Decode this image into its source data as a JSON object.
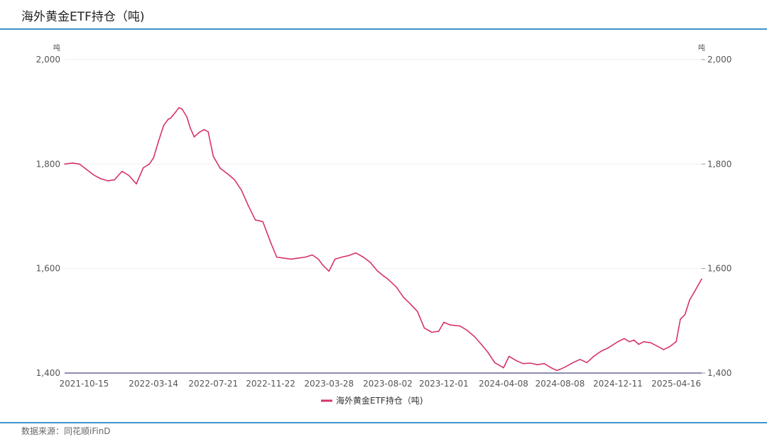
{
  "header": {
    "title": "海外黄金ETF持仓（吨)"
  },
  "footer": {
    "source": "数据来源：同花顺iFinD"
  },
  "colors": {
    "series": "#d6336c",
    "rule": "#3f93c9",
    "axis": "#666699",
    "grid": "#eeeeee"
  },
  "chart_data": {
    "type": "line",
    "title": "海外黄金ETF持仓（吨)",
    "y_unit_left": "吨",
    "y_unit_right": "吨",
    "ylim": [
      1400,
      2000
    ],
    "y_ticks": [
      "2,000",
      "1,800",
      "1,600",
      "1,400"
    ],
    "y_tick_values": [
      2000,
      1800,
      1600,
      1400
    ],
    "x_tick_labels": [
      "2021-10-15",
      "2022-03-14",
      "2022-07-21",
      "2022-11-22",
      "2023-03-28",
      "2023-08-02",
      "2023-12-01",
      "2024-04-08",
      "2024-08-08",
      "2024-12-11",
      "2025-04-16"
    ],
    "grid": true,
    "legend_position": "bottom-center",
    "series": [
      {
        "name": "海外黄金ETF持仓（吨)",
        "x": [
          "2021-09-03",
          "2021-09-20",
          "2021-10-05",
          "2021-10-20",
          "2021-11-05",
          "2021-11-20",
          "2021-12-05",
          "2021-12-20",
          "2022-01-05",
          "2022-01-20",
          "2022-02-05",
          "2022-02-20",
          "2022-03-05",
          "2022-03-14",
          "2022-03-25",
          "2022-04-05",
          "2022-04-15",
          "2022-04-20",
          "2022-05-01",
          "2022-05-08",
          "2022-05-15",
          "2022-05-25",
          "2022-06-01",
          "2022-06-10",
          "2022-06-20",
          "2022-07-01",
          "2022-07-10",
          "2022-07-21",
          "2022-08-05",
          "2022-08-20",
          "2022-09-05",
          "2022-09-20",
          "2022-10-05",
          "2022-10-20",
          "2022-11-05",
          "2022-11-22",
          "2022-12-05",
          "2022-12-20",
          "2023-01-05",
          "2023-01-20",
          "2023-02-05",
          "2023-02-20",
          "2023-03-05",
          "2023-03-15",
          "2023-03-28",
          "2023-04-10",
          "2023-04-25",
          "2023-05-10",
          "2023-05-25",
          "2023-06-10",
          "2023-06-25",
          "2023-07-10",
          "2023-07-25",
          "2023-08-02",
          "2023-08-20",
          "2023-09-05",
          "2023-09-20",
          "2023-10-05",
          "2023-10-20",
          "2023-11-05",
          "2023-11-20",
          "2023-12-01",
          "2023-12-15",
          "2024-01-05",
          "2024-01-20",
          "2024-02-05",
          "2024-02-20",
          "2024-03-05",
          "2024-03-20",
          "2024-04-08",
          "2024-04-20",
          "2024-05-05",
          "2024-05-20",
          "2024-06-05",
          "2024-06-20",
          "2024-07-05",
          "2024-07-20",
          "2024-08-01",
          "2024-08-08",
          "2024-08-20",
          "2024-09-05",
          "2024-09-20",
          "2024-10-05",
          "2024-10-20",
          "2024-11-05",
          "2024-11-20",
          "2024-12-11",
          "2024-12-25",
          "2025-01-05",
          "2025-01-15",
          "2025-01-25",
          "2025-02-05",
          "2025-02-20",
          "2025-03-05",
          "2025-03-20",
          "2025-04-01",
          "2025-04-16",
          "2025-04-25",
          "2025-05-05",
          "2025-05-15",
          "2025-05-25",
          "2025-06-10"
        ],
        "values": [
          1800,
          1802,
          1800,
          1790,
          1779,
          1772,
          1768,
          1770,
          1786,
          1778,
          1762,
          1793,
          1800,
          1812,
          1844,
          1874,
          1886,
          1888,
          1900,
          1908,
          1905,
          1890,
          1870,
          1852,
          1860,
          1866,
          1862,
          1815,
          1792,
          1782,
          1770,
          1750,
          1720,
          1693,
          1690,
          1650,
          1622,
          1620,
          1618,
          1620,
          1622,
          1626,
          1618,
          1606,
          1595,
          1618,
          1622,
          1625,
          1630,
          1622,
          1612,
          1596,
          1585,
          1580,
          1565,
          1545,
          1532,
          1518,
          1486,
          1478,
          1480,
          1497,
          1492,
          1490,
          1482,
          1470,
          1455,
          1440,
          1420,
          1410,
          1432,
          1424,
          1418,
          1419,
          1416,
          1418,
          1410,
          1405,
          1407,
          1412,
          1420,
          1426,
          1420,
          1432,
          1442,
          1448,
          1460,
          1466,
          1460,
          1463,
          1455,
          1460,
          1458,
          1452,
          1445,
          1450,
          1460,
          1503,
          1512,
          1540,
          1555,
          1580
        ]
      }
    ]
  }
}
